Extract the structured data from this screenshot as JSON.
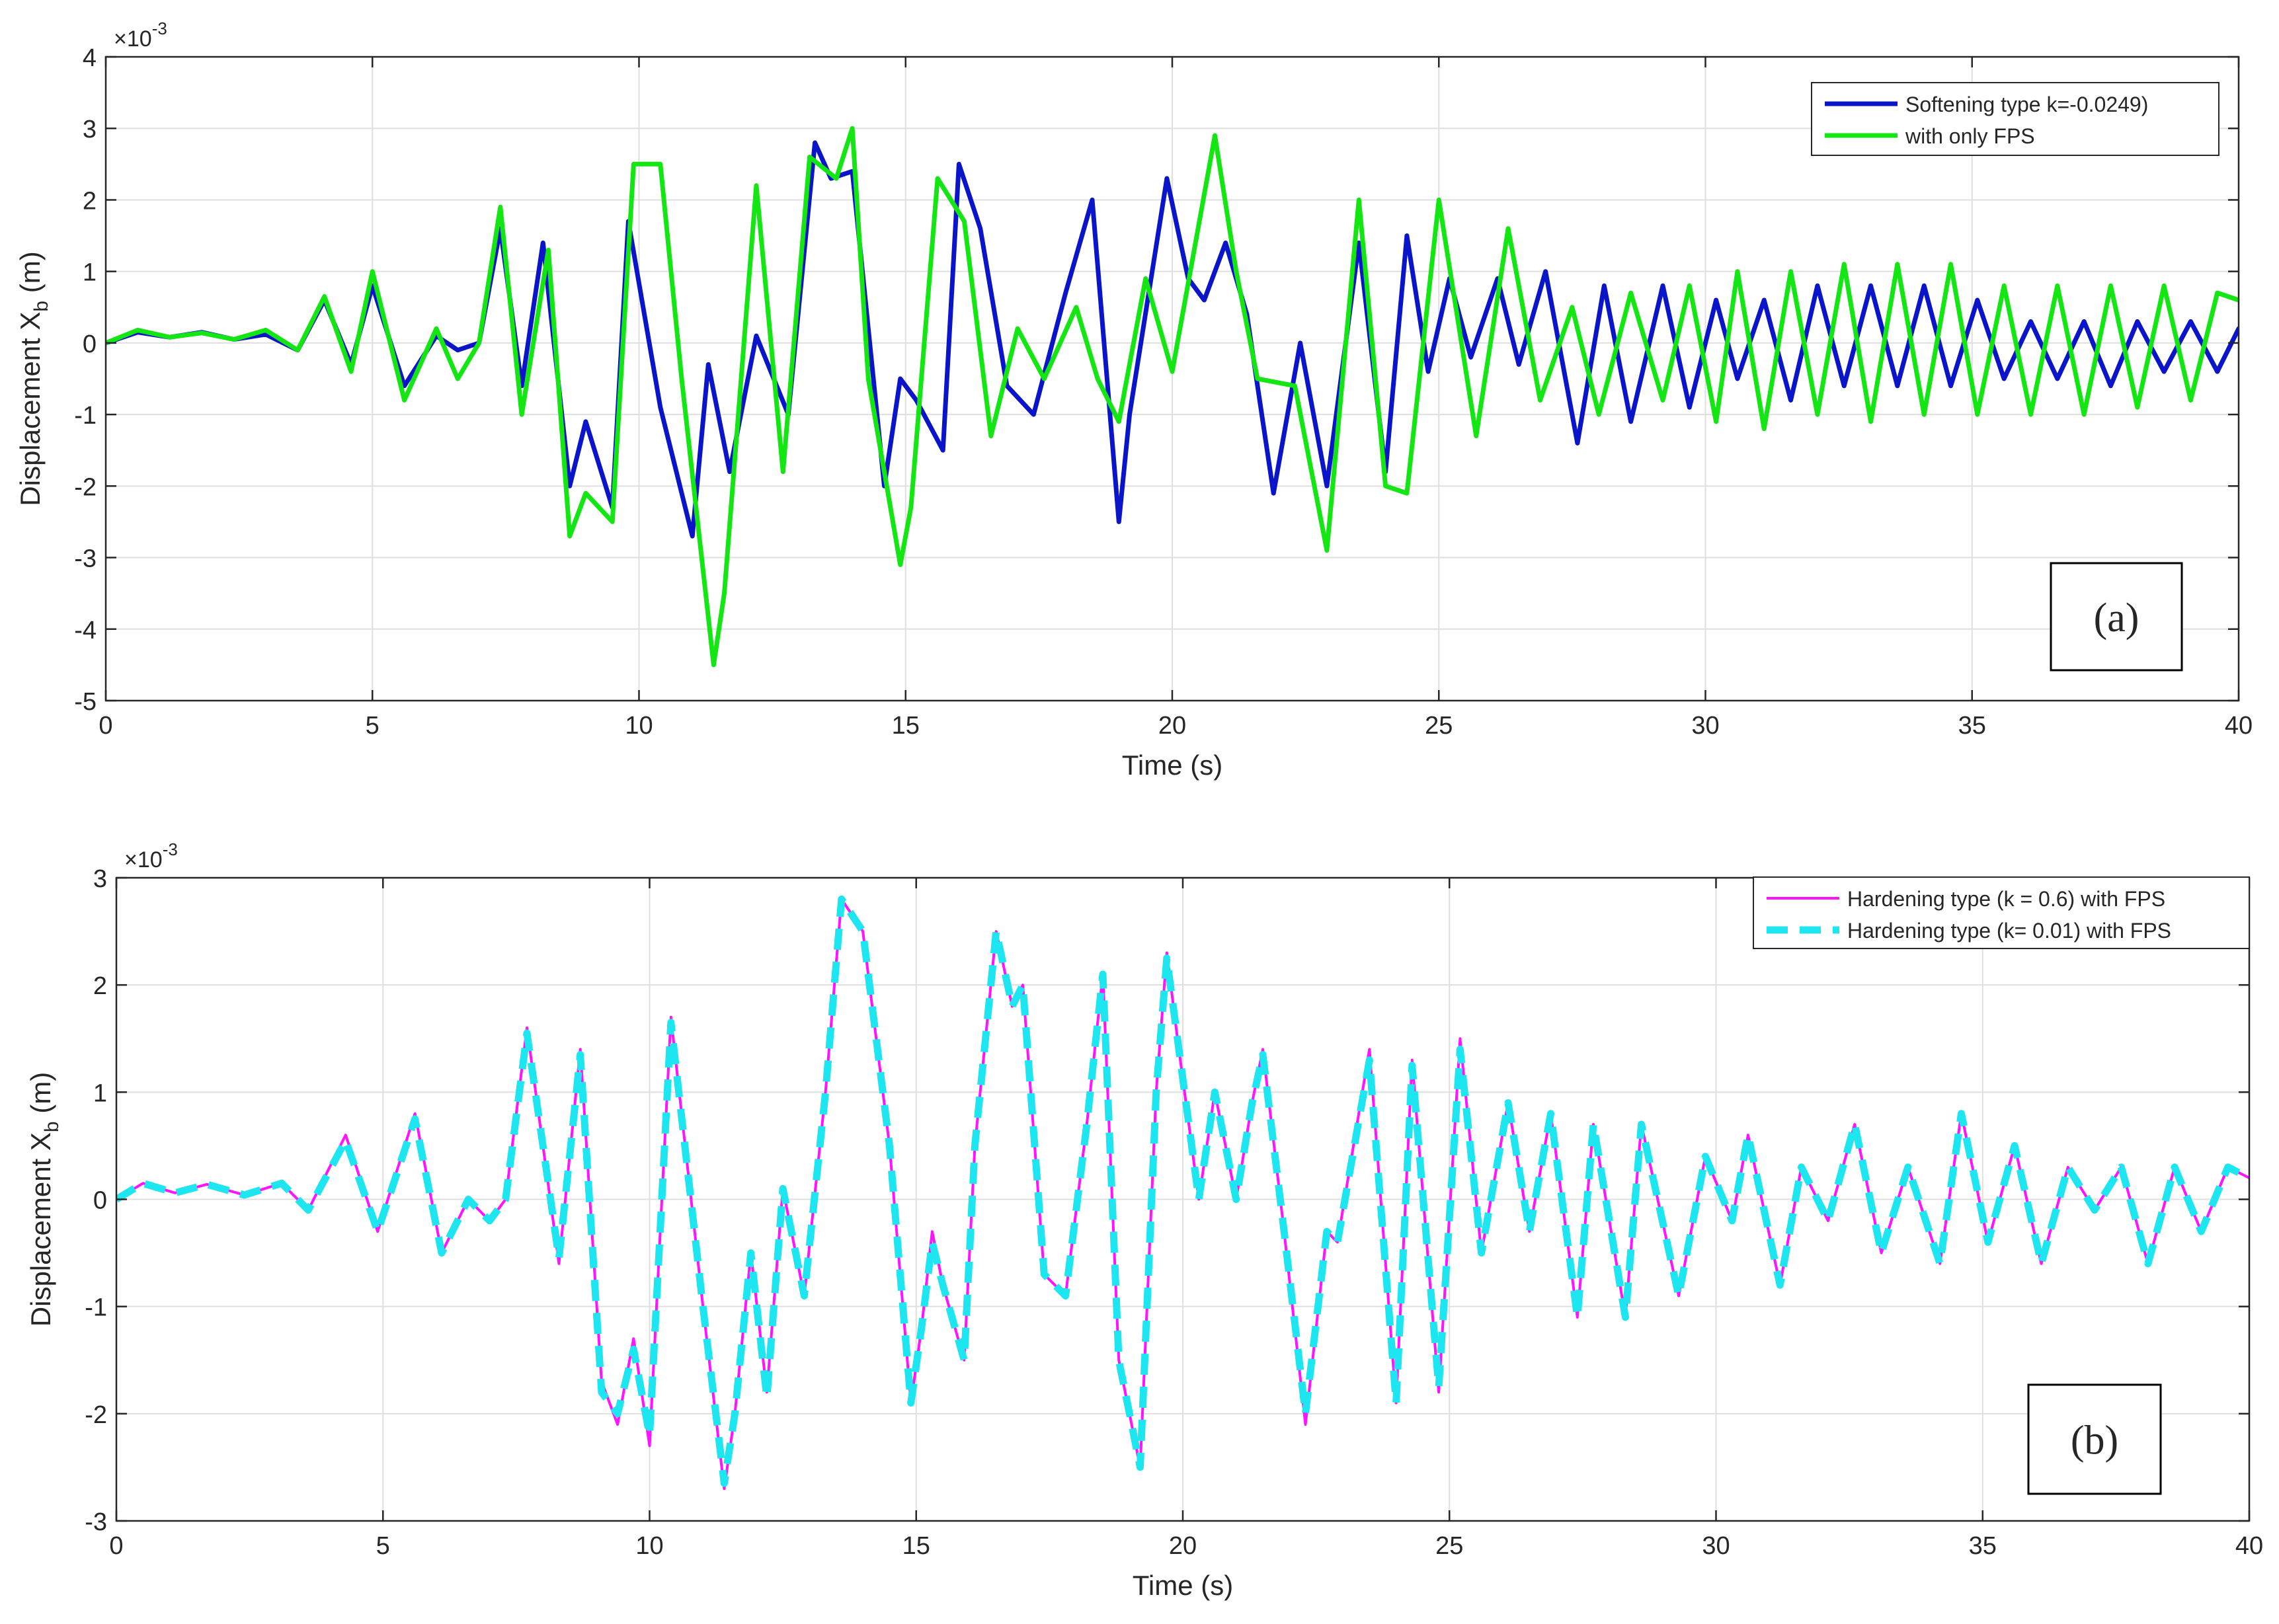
{
  "chart_data": [
    {
      "type": "line",
      "panel_label": "(a)",
      "xlabel": "Time (s)",
      "ylabel": "Displacement X",
      "ylabel_sub": "b",
      "ylabel_unit": " (m)",
      "exponent_base": "×10",
      "exponent_power": "-3",
      "xlim": [
        0,
        40
      ],
      "ylim": [
        -5,
        4
      ],
      "xticks": [
        "0",
        "5",
        "10",
        "15",
        "20",
        "25",
        "30",
        "35",
        "40"
      ],
      "yticks": [
        "-5",
        "-4",
        "-3",
        "-2",
        "-1",
        "0",
        "1",
        "2",
        "3",
        "4"
      ],
      "grid": true,
      "legend_position": "top-right",
      "series": [
        {
          "name": "Softening type k=-0.0249)",
          "color": "#0a14c8",
          "style": "solid",
          "x": [
            0,
            0.6,
            1.2,
            1.8,
            2.4,
            3.0,
            3.6,
            4.1,
            4.6,
            5.0,
            5.6,
            6.2,
            6.6,
            7.0,
            7.4,
            7.8,
            8.2,
            8.7,
            9.0,
            9.5,
            9.8,
            10.4,
            11.0,
            11.3,
            11.7,
            12.2,
            12.8,
            13.3,
            13.6,
            14.0,
            14.6,
            14.9,
            15.2,
            15.7,
            16.0,
            16.4,
            16.9,
            17.4,
            18.0,
            18.5,
            19.0,
            19.2,
            19.9,
            20.3,
            20.6,
            21.0,
            21.4,
            21.9,
            22.4,
            22.9,
            23.5,
            24.0,
            24.4,
            24.8,
            25.2,
            25.6,
            26.1,
            26.5,
            27.0,
            27.6,
            28.1,
            28.6,
            29.2,
            29.7,
            30.2,
            30.6,
            31.1,
            31.6,
            32.1,
            32.6,
            33.1,
            33.6,
            34.1,
            34.6,
            35.1,
            35.6,
            36.1,
            36.6,
            37.1,
            37.6,
            38.1,
            38.6,
            39.1,
            39.6,
            40
          ],
          "y": [
            0,
            0.15,
            0.08,
            0.15,
            0.05,
            0.12,
            -0.1,
            0.6,
            -0.3,
            0.8,
            -0.6,
            0.1,
            -0.1,
            0.0,
            1.6,
            -0.6,
            1.4,
            -2.0,
            -1.1,
            -2.3,
            1.7,
            -0.9,
            -2.7,
            -0.3,
            -1.8,
            0.1,
            -1.0,
            2.8,
            2.3,
            2.4,
            -2.0,
            -0.5,
            -0.8,
            -1.5,
            2.5,
            1.6,
            -0.6,
            -1.0,
            0.7,
            2.0,
            -2.5,
            -1.0,
            2.3,
            0.9,
            0.6,
            1.4,
            0.4,
            -2.1,
            0.0,
            -2.0,
            1.4,
            -1.8,
            1.5,
            -0.4,
            0.9,
            -0.2,
            0.9,
            -0.3,
            1.0,
            -1.4,
            0.8,
            -1.1,
            0.8,
            -0.9,
            0.6,
            -0.5,
            0.6,
            -0.8,
            0.8,
            -0.6,
            0.8,
            -0.6,
            0.8,
            -0.6,
            0.6,
            -0.5,
            0.3,
            -0.5,
            0.3,
            -0.6,
            0.3,
            -0.4,
            0.3,
            -0.4,
            0.2
          ]
        },
        {
          "name": "with only FPS",
          "color": "#14e614",
          "style": "solid",
          "x": [
            0,
            0.6,
            1.2,
            1.8,
            2.4,
            3.0,
            3.6,
            4.1,
            4.6,
            5.0,
            5.6,
            6.2,
            6.6,
            7.0,
            7.4,
            7.8,
            8.3,
            8.7,
            9.0,
            9.5,
            9.9,
            10.4,
            10.8,
            11.4,
            11.6,
            12.2,
            12.7,
            13.2,
            13.7,
            14.0,
            14.3,
            14.9,
            15.1,
            15.6,
            16.1,
            16.6,
            17.1,
            17.6,
            18.2,
            18.6,
            19.0,
            19.5,
            20.0,
            20.8,
            21.2,
            21.6,
            22.3,
            22.9,
            23.5,
            24.0,
            24.4,
            25.0,
            25.7,
            26.3,
            26.9,
            27.5,
            28.0,
            28.6,
            29.2,
            29.7,
            30.2,
            30.6,
            31.1,
            31.6,
            32.1,
            32.6,
            33.1,
            33.6,
            34.1,
            34.6,
            35.1,
            35.6,
            36.1,
            36.6,
            37.1,
            37.6,
            38.1,
            38.6,
            39.1,
            39.6,
            40
          ],
          "y": [
            0,
            0.18,
            0.08,
            0.14,
            0.05,
            0.18,
            -0.1,
            0.65,
            -0.4,
            1.0,
            -0.8,
            0.2,
            -0.5,
            0.0,
            1.9,
            -1.0,
            1.3,
            -2.7,
            -2.1,
            -2.5,
            2.5,
            2.5,
            -0.5,
            -4.5,
            -3.5,
            2.2,
            -1.8,
            2.6,
            2.3,
            3.0,
            -0.5,
            -3.1,
            -2.3,
            2.3,
            1.7,
            -1.3,
            0.2,
            -0.5,
            0.5,
            -0.5,
            -1.1,
            0.9,
            -0.4,
            2.9,
            1.0,
            -0.5,
            -0.6,
            -2.9,
            2.0,
            -2.0,
            -2.1,
            2.0,
            -1.3,
            1.6,
            -0.8,
            0.5,
            -1.0,
            0.7,
            -0.8,
            0.8,
            -1.1,
            1.0,
            -1.2,
            1.0,
            -1.0,
            1.1,
            -1.1,
            1.1,
            -1.0,
            1.1,
            -1.0,
            0.8,
            -1.0,
            0.8,
            -1.0,
            0.8,
            -0.9,
            0.8,
            -0.8,
            0.7,
            0.6
          ]
        }
      ]
    },
    {
      "type": "line",
      "panel_label": "(b)",
      "xlabel": "Time (s)",
      "ylabel": "Displacement X",
      "ylabel_sub": "b",
      "ylabel_unit": " (m)",
      "exponent_base": "×10",
      "exponent_power": "-3",
      "xlim": [
        0,
        40
      ],
      "ylim": [
        -3,
        3
      ],
      "xticks": [
        "0",
        "5",
        "10",
        "15",
        "20",
        "25",
        "30",
        "35",
        "40"
      ],
      "yticks": [
        "-3",
        "-2",
        "-1",
        "0",
        "1",
        "2",
        "3"
      ],
      "grid": true,
      "legend_position": "top-right",
      "series": [
        {
          "name": "Hardening type (k = 0.6) with FPS",
          "color": "#ff14ff",
          "style": "solid",
          "x": [
            0,
            0.5,
            1.1,
            1.7,
            2.4,
            3.1,
            3.6,
            4.3,
            4.9,
            5.6,
            6.1,
            6.6,
            7.0,
            7.3,
            7.7,
            8.3,
            8.7,
            9.1,
            9.4,
            9.7,
            10.0,
            10.4,
            11.0,
            11.4,
            11.6,
            11.9,
            12.2,
            12.5,
            12.9,
            13.3,
            13.6,
            14.0,
            14.5,
            14.9,
            15.1,
            15.3,
            15.5,
            15.9,
            16.1,
            16.5,
            16.8,
            17.0,
            17.4,
            17.8,
            18.2,
            18.5,
            18.8,
            19.2,
            19.5,
            19.7,
            19.9,
            20.3,
            20.6,
            21.0,
            21.3,
            21.5,
            21.9,
            22.3,
            22.7,
            22.9,
            23.5,
            24.0,
            24.3,
            24.8,
            25.2,
            25.6,
            26.1,
            26.5,
            26.9,
            27.4,
            27.7,
            28.3,
            28.6,
            29.3,
            29.8,
            30.3,
            30.6,
            31.2,
            31.6,
            32.1,
            32.6,
            33.1,
            33.6,
            34.2,
            34.6,
            35.1,
            35.6,
            36.1,
            36.6,
            37.1,
            37.6,
            38.1,
            38.6,
            39.1,
            39.6,
            40
          ],
          "y": [
            0,
            0.15,
            0.06,
            0.14,
            0.04,
            0.15,
            -0.1,
            0.6,
            -0.3,
            0.8,
            -0.5,
            0.0,
            -0.2,
            0.0,
            1.6,
            -0.6,
            1.4,
            -1.7,
            -2.1,
            -1.3,
            -2.3,
            1.7,
            -1.0,
            -2.7,
            -2.0,
            -0.5,
            -1.8,
            0.1,
            -0.9,
            1.0,
            2.8,
            2.5,
            0.5,
            -1.9,
            -1.2,
            -0.3,
            -0.8,
            -1.5,
            0.5,
            2.5,
            1.8,
            2.0,
            -0.7,
            -0.9,
            0.7,
            2.1,
            -1.5,
            -2.5,
            1.0,
            2.3,
            1.5,
            0.0,
            1.0,
            0.0,
            0.9,
            1.4,
            -0.3,
            -2.1,
            -0.3,
            -0.4,
            1.4,
            -1.9,
            1.3,
            -1.8,
            1.5,
            -0.5,
            0.9,
            -0.3,
            0.8,
            -1.1,
            0.7,
            -1.1,
            0.7,
            -0.9,
            0.4,
            -0.2,
            0.6,
            -0.8,
            0.3,
            -0.2,
            0.7,
            -0.5,
            0.3,
            -0.6,
            0.8,
            -0.4,
            0.5,
            -0.6,
            0.3,
            -0.1,
            0.3,
            -0.6,
            0.3,
            -0.3,
            0.3,
            0.2
          ]
        },
        {
          "name": "Hardening type (k= 0.01) with FPS",
          "color": "#1ee6f0",
          "style": "dashed",
          "x": [
            0,
            0.5,
            1.1,
            1.7,
            2.4,
            3.1,
            3.6,
            4.3,
            4.9,
            5.6,
            6.1,
            6.6,
            7.0,
            7.3,
            7.7,
            8.3,
            8.7,
            9.1,
            9.4,
            9.7,
            10.0,
            10.4,
            11.0,
            11.4,
            11.6,
            11.9,
            12.2,
            12.5,
            12.9,
            13.3,
            13.6,
            14.0,
            14.5,
            14.9,
            15.1,
            15.3,
            15.5,
            15.9,
            16.1,
            16.5,
            16.8,
            17.0,
            17.4,
            17.8,
            18.2,
            18.5,
            18.8,
            19.2,
            19.5,
            19.7,
            19.9,
            20.3,
            20.6,
            21.0,
            21.3,
            21.5,
            21.9,
            22.3,
            22.7,
            22.9,
            23.5,
            24.0,
            24.3,
            24.8,
            25.2,
            25.6,
            26.1,
            26.5,
            26.9,
            27.4,
            27.7,
            28.3,
            28.6,
            29.3,
            29.8,
            30.3,
            30.6,
            31.2,
            31.6,
            32.1,
            32.6,
            33.1,
            33.6,
            34.2,
            34.6,
            35.1,
            35.6,
            36.1,
            36.6,
            37.1,
            37.6,
            38.1,
            38.6,
            39.1,
            39.6,
            40
          ],
          "y": [
            0,
            0.15,
            0.06,
            0.14,
            0.04,
            0.15,
            -0.1,
            0.55,
            -0.3,
            0.75,
            -0.5,
            0.0,
            -0.2,
            0.0,
            1.55,
            -0.55,
            1.35,
            -1.8,
            -2.0,
            -1.4,
            -2.2,
            1.65,
            -1.0,
            -2.65,
            -2.0,
            -0.5,
            -1.85,
            0.1,
            -0.9,
            1.0,
            2.8,
            2.5,
            0.5,
            -1.9,
            -1.2,
            -0.4,
            -0.8,
            -1.5,
            0.5,
            2.5,
            1.8,
            2.0,
            -0.7,
            -0.9,
            0.7,
            2.1,
            -1.5,
            -2.5,
            1.0,
            2.25,
            1.5,
            0.0,
            1.0,
            0.0,
            0.9,
            1.35,
            -0.3,
            -2.0,
            -0.3,
            -0.4,
            1.3,
            -1.9,
            1.25,
            -1.75,
            1.4,
            -0.5,
            0.9,
            -0.3,
            0.8,
            -1.1,
            0.7,
            -1.1,
            0.7,
            -0.9,
            0.4,
            -0.2,
            0.6,
            -0.8,
            0.3,
            -0.2,
            0.7,
            -0.5,
            0.3,
            -0.6,
            0.8,
            -0.4,
            0.5,
            -0.6,
            0.3,
            -0.1,
            0.3,
            -0.6,
            0.3,
            -0.3,
            0.3,
            0.2
          ]
        }
      ]
    }
  ]
}
